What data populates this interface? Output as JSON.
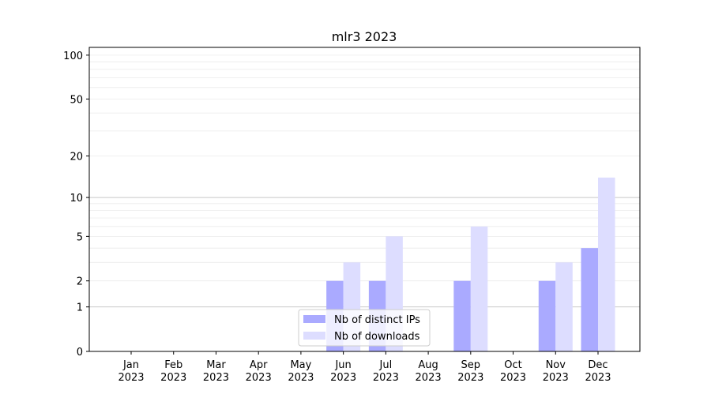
{
  "chart_data": {
    "type": "bar",
    "title": "mlr3 2023",
    "xlabel": "",
    "ylabel": "",
    "yscale": "symlog (log10(1+y))",
    "ylim": [
      0,
      113
    ],
    "yticks": [
      0,
      1,
      2,
      5,
      10,
      20,
      50,
      100
    ],
    "grid": true,
    "legend_position": "lower-center",
    "categories": [
      "Jan\n2023",
      "Feb\n2023",
      "Mar\n2023",
      "Apr\n2023",
      "May\n2023",
      "Jun\n2023",
      "Jul\n2023",
      "Aug\n2023",
      "Sep\n2023",
      "Oct\n2023",
      "Nov\n2023",
      "Dec\n2023"
    ],
    "series": [
      {
        "name": "Nb of distinct IPs",
        "color": "#aaaaff",
        "values": [
          0,
          0,
          0,
          0,
          0,
          2,
          2,
          0,
          2,
          0,
          2,
          4
        ]
      },
      {
        "name": "Nb of downloads",
        "color": "#ddddff",
        "values": [
          0,
          0,
          0,
          0,
          0,
          3,
          5,
          0,
          6,
          0,
          3,
          14
        ]
      }
    ]
  }
}
